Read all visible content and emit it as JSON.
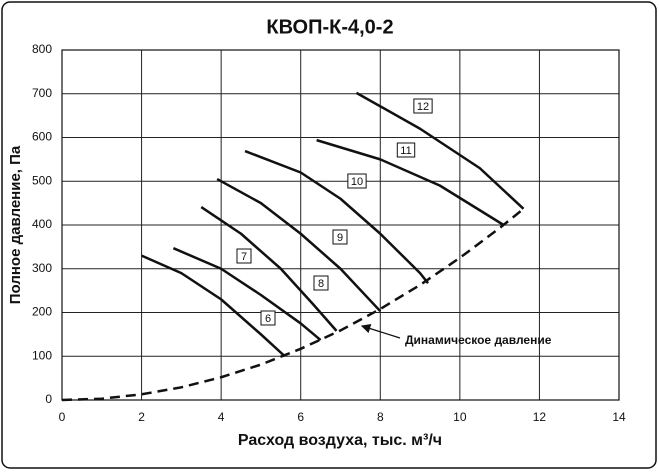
{
  "chart_data": {
    "type": "line",
    "title": "КВОП-К-4,0-2",
    "x_label": "Расход воздуха,  тыс. м³/ч",
    "y_label": "Полное давление, Па",
    "xlim": [
      0,
      14
    ],
    "xticks": [
      0,
      2,
      4,
      6,
      8,
      10,
      12,
      14
    ],
    "ylim": [
      0,
      800
    ],
    "yticks": [
      0,
      100,
      200,
      300,
      400,
      500,
      600,
      700,
      800
    ],
    "grid": true,
    "annotation": "Динамическое давление",
    "series": [
      {
        "name": "6",
        "color": "#111111",
        "x": [
          2.0,
          3.0,
          4.0,
          5.0,
          5.6
        ],
        "values": [
          330,
          290,
          230,
          150,
          100
        ]
      },
      {
        "name": "7",
        "color": "#111111",
        "x": [
          2.8,
          4.0,
          5.0,
          6.0,
          6.5
        ],
        "values": [
          347,
          300,
          240,
          175,
          137
        ]
      },
      {
        "name": "8",
        "color": "#111111",
        "x": [
          3.5,
          4.5,
          5.5,
          6.3,
          6.9
        ],
        "values": [
          441,
          380,
          300,
          220,
          158
        ]
      },
      {
        "name": "9",
        "color": "#111111",
        "x": [
          3.9,
          5.0,
          6.0,
          7.0,
          8.0
        ],
        "values": [
          505,
          450,
          380,
          300,
          203
        ]
      },
      {
        "name": "10",
        "color": "#111111",
        "x": [
          4.6,
          6.0,
          7.0,
          8.0,
          9.0,
          9.2
        ],
        "values": [
          569,
          520,
          460,
          380,
          290,
          267
        ]
      },
      {
        "name": "11",
        "color": "#111111",
        "x": [
          6.4,
          8.0,
          9.5,
          11.1
        ],
        "values": [
          594,
          550,
          490,
          400
        ]
      },
      {
        "name": "12",
        "color": "#111111",
        "x": [
          7.4,
          9.0,
          10.5,
          11.6
        ],
        "values": [
          702,
          620,
          530,
          437
        ]
      },
      {
        "name": "Динамическое давление",
        "color": "#111111",
        "style": "dashed",
        "x": [
          0,
          1,
          2,
          3,
          4,
          5,
          6,
          7,
          8,
          9,
          10,
          11,
          11.6
        ],
        "values": [
          0,
          3,
          13,
          29,
          52,
          81,
          117,
          159,
          208,
          263,
          325,
          393,
          437
        ]
      }
    ]
  }
}
